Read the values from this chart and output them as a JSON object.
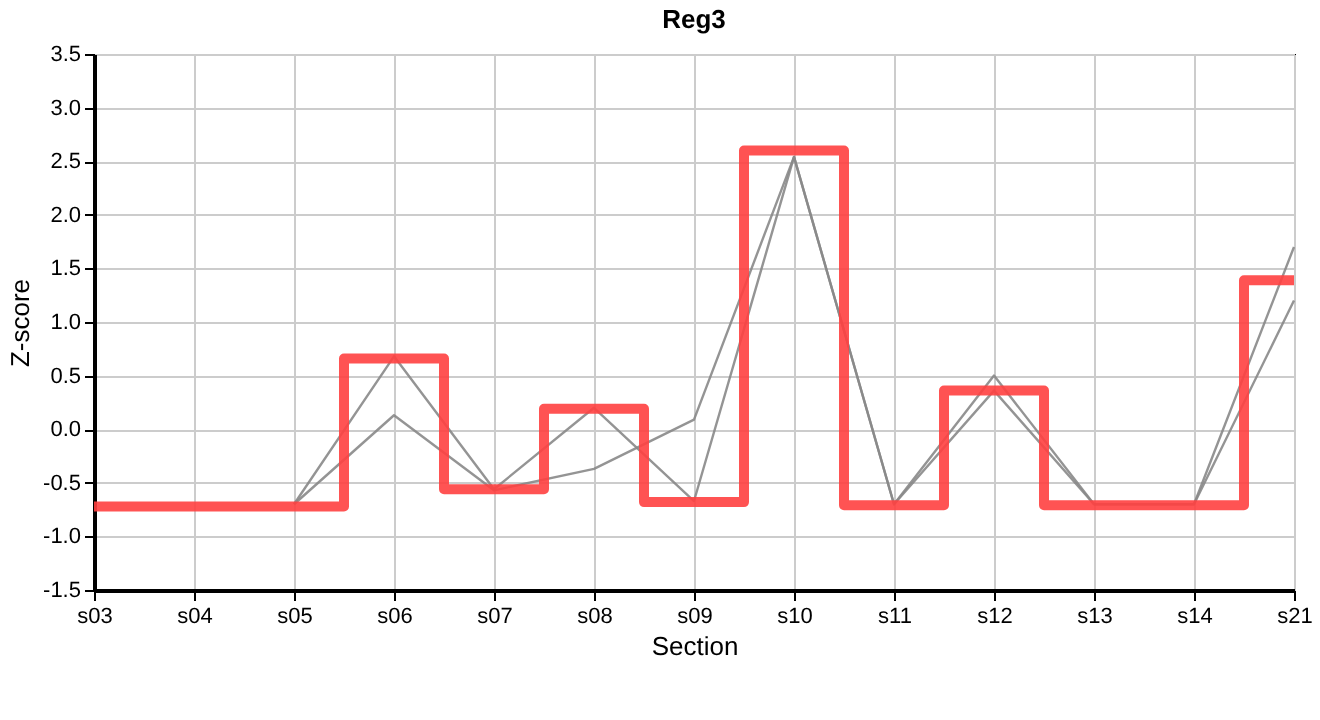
{
  "chart_data": {
    "type": "line",
    "title": "Reg3",
    "xlabel": "Section",
    "ylabel": "Z-score",
    "categories": [
      "s03",
      "s04",
      "s05",
      "s06",
      "s07",
      "s08",
      "s09",
      "s10",
      "s11",
      "s12",
      "s13",
      "s14",
      "s21"
    ],
    "series": [
      {
        "type": "line",
        "color": "#888888",
        "values": [
          null,
          null,
          -0.7,
          0.68,
          -0.56,
          0.2,
          -0.67,
          2.54,
          -0.7,
          0.5,
          -0.7,
          -0.7,
          1.7
        ]
      },
      {
        "type": "line",
        "color": "#888888",
        "values": [
          null,
          null,
          -0.7,
          0.13,
          -0.57,
          -0.37,
          0.09,
          2.54,
          -0.7,
          0.36,
          -0.7,
          -0.7,
          1.2
        ]
      },
      {
        "type": "step",
        "color": "#ff4040",
        "values": [
          -0.72,
          -0.72,
          -0.72,
          0.66,
          -0.56,
          0.19,
          -0.68,
          2.6,
          -0.71,
          0.36,
          -0.71,
          -0.71,
          1.39
        ]
      }
    ],
    "ylim": [
      -1.5,
      3.5
    ],
    "yticks": [
      {
        "value": -1.5,
        "label": "-1.5"
      },
      {
        "value": -1,
        "label": "-1.0"
      },
      {
        "value": -0.5,
        "label": "-0.5"
      },
      {
        "value": 0,
        "label": "0.0"
      },
      {
        "value": 0.5,
        "label": "0.5"
      },
      {
        "value": 1,
        "label": "1.0"
      },
      {
        "value": 1.5,
        "label": "1.5"
      },
      {
        "value": 2,
        "label": "2.0"
      },
      {
        "value": 2.5,
        "label": "2.5"
      },
      {
        "value": 3,
        "label": "3.0"
      },
      {
        "value": 3.5,
        "label": "3.5"
      }
    ],
    "grid": true,
    "marker": "none"
  }
}
